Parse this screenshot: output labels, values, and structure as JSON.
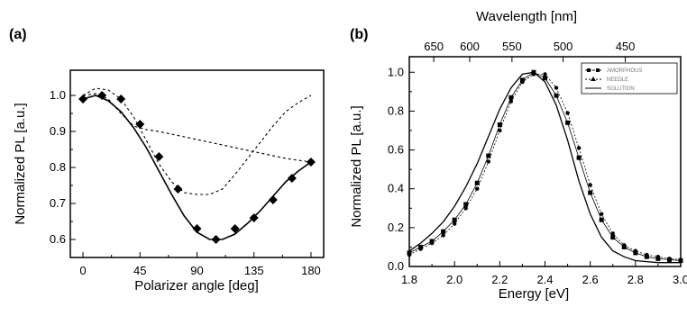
{
  "chart_data": [
    {
      "panel_label": "(a)",
      "type": "scatter",
      "xlabel": "Polarizer angle [deg]",
      "ylabel": "Normalized PL [a.u.]",
      "xlim": [
        -10,
        190
      ],
      "ylim": [
        0.55,
        1.07
      ],
      "xticks": [
        0,
        45,
        90,
        135,
        180
      ],
      "yticks": [
        0.6,
        0.7,
        0.8,
        0.9,
        1.0
      ],
      "grid": false,
      "series": [
        {
          "style": "markers",
          "x": [
            0,
            15,
            30,
            45,
            60,
            75,
            90,
            105,
            120,
            135,
            150,
            165,
            180
          ],
          "y": [
            0.99,
            1.0,
            0.99,
            0.92,
            0.83,
            0.74,
            0.63,
            0.6,
            0.63,
            0.66,
            0.71,
            0.77,
            0.815
          ]
        },
        {
          "style": "solid",
          "x": [
            0,
            10,
            20,
            30,
            40,
            50,
            60,
            70,
            80,
            90,
            100,
            110,
            120,
            130,
            140,
            150,
            160,
            170,
            180
          ],
          "y": [
            0.99,
            1.0,
            0.985,
            0.955,
            0.91,
            0.855,
            0.79,
            0.725,
            0.665,
            0.62,
            0.6,
            0.6,
            0.615,
            0.645,
            0.68,
            0.72,
            0.76,
            0.79,
            0.815
          ]
        },
        {
          "style": "dashed",
          "x": [
            0,
            10,
            20,
            30,
            40,
            50,
            60,
            70,
            80,
            90,
            100,
            110,
            120,
            130,
            140,
            150,
            160,
            170,
            180
          ],
          "y": [
            1.0,
            1.02,
            1.015,
            0.99,
            0.94,
            0.875,
            0.81,
            0.76,
            0.73,
            0.725,
            0.725,
            0.74,
            0.78,
            0.825,
            0.87,
            0.915,
            0.955,
            0.98,
            1.0
          ]
        },
        {
          "style": "dashed",
          "x": [
            0,
            10,
            20,
            30,
            40,
            50,
            60,
            80,
            100,
            120,
            140,
            160,
            180
          ],
          "y": [
            1.0,
            1.005,
            0.99,
            0.95,
            0.915,
            0.905,
            0.9,
            0.885,
            0.87,
            0.855,
            0.84,
            0.825,
            0.815
          ]
        }
      ]
    },
    {
      "panel_label": "(b)",
      "type": "line",
      "xlabel": "Energy [eV]",
      "ylabel": "Normalized PL [a.u.]",
      "top_axis_label": "Wavelength [nm]",
      "top_ticks": [
        {
          "label": "650",
          "energy": 1.908
        },
        {
          "label": "600",
          "energy": 2.067
        },
        {
          "label": "550",
          "energy": 2.254
        },
        {
          "label": "500",
          "energy": 2.48
        },
        {
          "label": "450",
          "energy": 2.755
        }
      ],
      "xlim": [
        1.8,
        3.0
      ],
      "ylim": [
        0.0,
        1.08
      ],
      "xticks": [
        1.8,
        2.0,
        2.2,
        2.4,
        2.6,
        2.8,
        3.0
      ],
      "xtick_labels": [
        "1.8",
        "2.0",
        "2.2",
        "2.4",
        "2.6",
        "2.8",
        "3.0"
      ],
      "yticks": [
        0.0,
        0.2,
        0.4,
        0.6,
        0.8,
        1.0
      ],
      "ytick_labels": [
        "0.0",
        "0.2",
        "0.4",
        "0.6",
        "0.8",
        "1.0"
      ],
      "grid": false,
      "legend_placement": "top-right",
      "series": [
        {
          "name": "AMORPHOUS",
          "style": "squares",
          "x": [
            1.8,
            1.85,
            1.9,
            1.95,
            2.0,
            2.05,
            2.1,
            2.15,
            2.2,
            2.25,
            2.3,
            2.35,
            2.4,
            2.45,
            2.5,
            2.55,
            2.6,
            2.65,
            2.7,
            2.75,
            2.8,
            2.85,
            2.9,
            2.95,
            3.0
          ],
          "y": [
            0.07,
            0.1,
            0.13,
            0.18,
            0.24,
            0.32,
            0.43,
            0.57,
            0.73,
            0.87,
            0.96,
            1.0,
            0.97,
            0.88,
            0.74,
            0.56,
            0.38,
            0.24,
            0.15,
            0.1,
            0.07,
            0.05,
            0.04,
            0.035,
            0.03
          ]
        },
        {
          "name": "NEEDLE",
          "style": "dots",
          "x": [
            1.8,
            1.85,
            1.9,
            1.95,
            2.0,
            2.05,
            2.1,
            2.15,
            2.2,
            2.25,
            2.3,
            2.35,
            2.4,
            2.45,
            2.5,
            2.55,
            2.6,
            2.65,
            2.7,
            2.75,
            2.8,
            2.85,
            2.9,
            2.95,
            3.0
          ],
          "y": [
            0.06,
            0.09,
            0.12,
            0.16,
            0.22,
            0.3,
            0.4,
            0.54,
            0.7,
            0.85,
            0.95,
            0.99,
            0.99,
            0.92,
            0.79,
            0.61,
            0.42,
            0.27,
            0.17,
            0.11,
            0.08,
            0.06,
            0.05,
            0.04,
            0.035
          ]
        },
        {
          "name": "SOLUTION",
          "style": "solid",
          "x": [
            1.8,
            1.85,
            1.9,
            1.95,
            2.0,
            2.05,
            2.1,
            2.15,
            2.2,
            2.25,
            2.3,
            2.35,
            2.4,
            2.45,
            2.5,
            2.55,
            2.6,
            2.65,
            2.7,
            2.75,
            2.8,
            2.85,
            2.9,
            2.95,
            3.0
          ],
          "y": [
            0.08,
            0.12,
            0.17,
            0.23,
            0.31,
            0.41,
            0.53,
            0.67,
            0.81,
            0.92,
            0.99,
            1.0,
            0.95,
            0.83,
            0.65,
            0.44,
            0.27,
            0.15,
            0.08,
            0.05,
            0.03,
            0.025,
            0.02,
            0.02,
            0.02
          ]
        }
      ]
    }
  ]
}
